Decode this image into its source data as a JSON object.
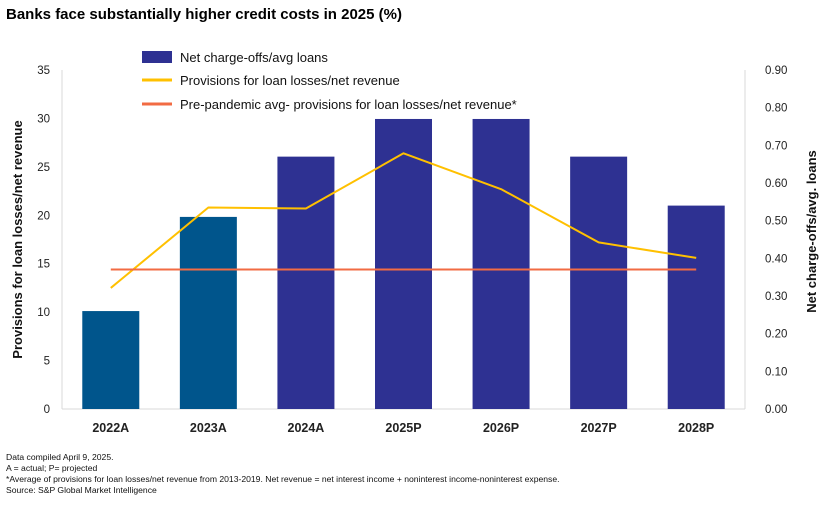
{
  "chart_data": {
    "type": "bar+line",
    "title": "Banks face substantially higher credit costs in 2025 (%)",
    "categories": [
      "2022A",
      "2023A",
      "2024A",
      "2025P",
      "2026P",
      "2027P",
      "2028P"
    ],
    "series": [
      {
        "name": "Net charge-offs/avg loans",
        "type": "bar",
        "axis": "right",
        "values": [
          0.26,
          0.51,
          0.67,
          0.77,
          0.77,
          0.67,
          0.54
        ],
        "colors": [
          "#00558C",
          "#00558C",
          "#2E3192",
          "#2E3192",
          "#2E3192",
          "#2E3192",
          "#2E3192"
        ]
      },
      {
        "name": "Provisions for loan losses/net revenue",
        "type": "line",
        "axis": "left",
        "values": [
          12.5,
          20.8,
          20.7,
          26.4,
          22.7,
          17.2,
          15.6
        ],
        "color": "#FFC000"
      },
      {
        "name": "Pre-pandemic avg- provisions for loan losses/net revenue*",
        "type": "line",
        "axis": "left",
        "values": [
          14.4,
          14.4,
          14.4,
          14.4,
          14.4,
          14.4,
          14.4
        ],
        "color": "#F26B43"
      }
    ],
    "ylabel_left": "Provisions for loan losses/net revenue",
    "ylabel_right": "Net charge-offs/avg. loans",
    "ylim_left": [
      0,
      35
    ],
    "ylim_right": [
      0,
      0.9
    ],
    "yticks_left": [
      "0",
      "5",
      "10",
      "15",
      "20",
      "25",
      "30",
      "35"
    ],
    "yticks_right": [
      "0.00",
      "0.10",
      "0.20",
      "0.30",
      "0.40",
      "0.50",
      "0.60",
      "0.70",
      "0.80",
      "0.90"
    ],
    "legend_position": "top-center"
  },
  "notes": [
    "Data compiled April 9, 2025.",
    "A = actual; P= projected",
    "*Average of provisions for loan losses/net revenue from 2013-2019. Net revenue = net interest income + noninterest income-noninterest expense.",
    "Source: S&P Global Market Intelligence"
  ]
}
